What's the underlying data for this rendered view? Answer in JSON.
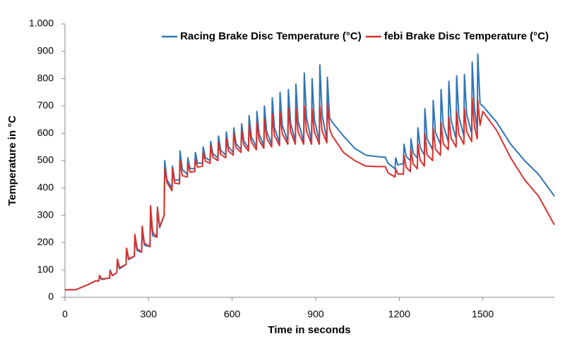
{
  "chart_data": {
    "type": "line",
    "x_label": "Time in seconds",
    "y_label": "Temperature in °C",
    "xlim": [
      0,
      1757
    ],
    "xticks": [
      0,
      300,
      600,
      900,
      1200,
      1500
    ],
    "ylim": [
      0,
      1000
    ],
    "yticks": [
      0,
      100,
      200,
      300,
      400,
      500,
      600,
      700,
      800,
      900,
      {
        "value": 1000,
        "label": "1.000"
      }
    ],
    "legend": "top-right",
    "x": [
      0,
      40,
      80,
      110,
      122,
      124,
      132,
      160,
      162,
      170,
      186,
      188,
      196,
      219,
      221,
      229,
      249,
      251,
      259,
      275,
      277,
      285,
      305,
      307,
      315,
      330,
      332,
      340,
      356,
      358,
      366,
      384,
      386,
      394,
      411,
      413,
      421,
      439,
      441,
      449,
      466,
      468,
      476,
      494,
      496,
      504,
      521,
      523,
      531,
      549,
      551,
      559,
      577,
      579,
      587,
      604,
      606,
      614,
      632,
      634,
      642,
      659,
      661,
      669,
      687,
      689,
      697,
      714,
      716,
      724,
      742,
      744,
      752,
      770,
      772,
      780,
      800,
      802,
      810,
      827,
      829,
      837,
      857,
      859,
      867,
      885,
      887,
      895,
      913,
      915,
      923,
      940,
      942,
      950,
      960,
      1000,
      1040,
      1080,
      1120,
      1150,
      1160,
      1185,
      1187,
      1195,
      1215,
      1217,
      1225,
      1240,
      1242,
      1250,
      1265,
      1267,
      1275,
      1290,
      1292,
      1300,
      1320,
      1322,
      1330,
      1348,
      1350,
      1358,
      1376,
      1378,
      1386,
      1404,
      1406,
      1414,
      1432,
      1434,
      1442,
      1460,
      1462,
      1470,
      1480,
      1482,
      1490,
      1500,
      1550,
      1600,
      1650,
      1700,
      1757
    ],
    "series": [
      {
        "name": "Racing Brake Disc Temperature (°C)",
        "color": "#2e75b6",
        "values": [
          27,
          28,
          45,
          60,
          60,
          75,
          65,
          70,
          100,
          80,
          90,
          130,
          104,
          120,
          170,
          138,
          150,
          210,
          171,
          165,
          240,
          191,
          185,
          300,
          225,
          220,
          320,
          255,
          300,
          500,
          430,
          400,
          480,
          428,
          430,
          535,
          467,
          450,
          510,
          471,
          470,
          530,
          491,
          490,
          550,
          511,
          500,
          570,
          525,
          510,
          590,
          538,
          520,
          605,
          550,
          530,
          620,
          562,
          540,
          635,
          573,
          545,
          665,
          587,
          550,
          680,
          596,
          555,
          700,
          606,
          560,
          730,
          620,
          565,
          750,
          630,
          570,
          760,
          637,
          570,
          780,
          644,
          570,
          820,
          658,
          570,
          800,
          651,
          570,
          850,
          668,
          575,
          805,
          656,
          640,
          590,
          545,
          520,
          515,
          512,
          490,
          470,
          510,
          484,
          490,
          560,
          515,
          500,
          580,
          528,
          510,
          620,
          549,
          520,
          690,
          580,
          540,
          720,
          603,
          560,
          760,
          630,
          570,
          790,
          647,
          580,
          810,
          661,
          590,
          815,
          669,
          600,
          860,
          691,
          610,
          890,
          708,
          700,
          640,
          560,
          500,
          450,
          370
        ]
      },
      {
        "name": "febi Brake Disc Temperature (°C)",
        "color": "#d7312e",
        "values": [
          27,
          28,
          45,
          60,
          60,
          80,
          67,
          70,
          95,
          79,
          90,
          140,
          108,
          120,
          180,
          141,
          150,
          230,
          178,
          165,
          260,
          198,
          185,
          335,
          238,
          220,
          330,
          258,
          300,
          470,
          420,
          390,
          470,
          418,
          415,
          500,
          445,
          440,
          490,
          458,
          460,
          505,
          476,
          480,
          530,
          498,
          490,
          555,
          513,
          500,
          565,
          523,
          510,
          580,
          535,
          520,
          600,
          548,
          530,
          610,
          558,
          535,
          630,
          568,
          540,
          640,
          575,
          545,
          650,
          582,
          550,
          670,
          592,
          555,
          680,
          599,
          560,
          690,
          606,
          560,
          690,
          606,
          560,
          700,
          609,
          560,
          690,
          606,
          560,
          700,
          609,
          565,
          710,
          616,
          590,
          530,
          500,
          480,
          478,
          478,
          455,
          440,
          470,
          451,
          450,
          520,
          475,
          460,
          540,
          488,
          470,
          560,
          502,
          480,
          600,
          522,
          500,
          620,
          542,
          520,
          640,
          562,
          540,
          660,
          582,
          550,
          680,
          596,
          560,
          690,
          606,
          570,
          730,
          626,
          580,
          720,
          629,
          680,
          610,
          510,
          430,
          370,
          265
        ]
      }
    ]
  }
}
